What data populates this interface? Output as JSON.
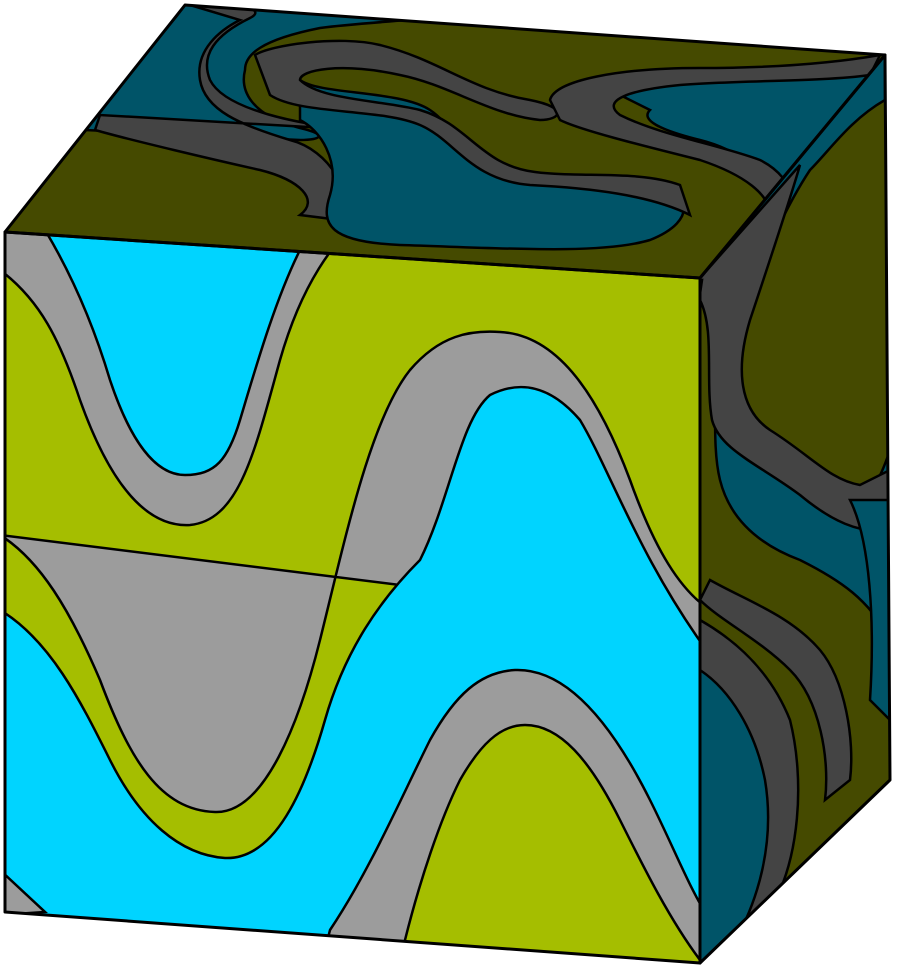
{
  "figure": {
    "description_text": "",
    "colors": {
      "cyan_bright": "#00d4ff",
      "olive_bright": "#a5be00",
      "gray_light": "#9c9c9c",
      "teal_dark": "#005468",
      "olive_dark": "#454a00",
      "gray_dark": "#444444",
      "outline": "#000000",
      "background": "#ffffff"
    },
    "faces": [
      "front",
      "top",
      "right"
    ]
  }
}
